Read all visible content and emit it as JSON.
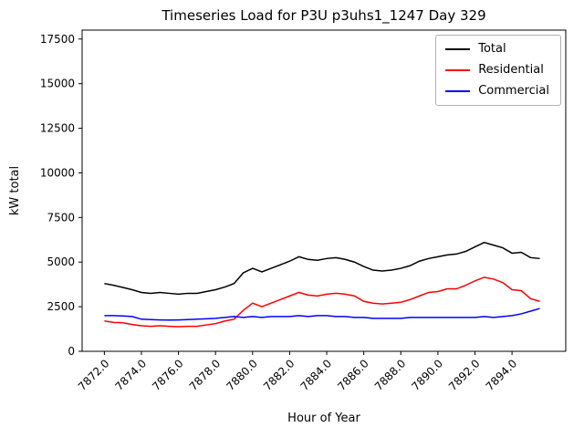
{
  "chart_data": {
    "type": "line",
    "title": "Timeseries Load for P3U p3uhs1_1247  Day 329",
    "xlabel": "Hour of Year",
    "ylabel": "kW total",
    "x": [
      7872.0,
      7872.5,
      7873.0,
      7873.5,
      7874.0,
      7874.5,
      7875.0,
      7875.5,
      7876.0,
      7876.5,
      7877.0,
      7877.5,
      7878.0,
      7878.5,
      7879.0,
      7879.5,
      7880.0,
      7880.5,
      7881.0,
      7881.5,
      7882.0,
      7882.5,
      7883.0,
      7883.5,
      7884.0,
      7884.5,
      7885.0,
      7885.5,
      7886.0,
      7886.5,
      7887.0,
      7887.5,
      7888.0,
      7888.5,
      7889.0,
      7889.5,
      7890.0,
      7890.5,
      7891.0,
      7891.5,
      7892.0,
      7892.5,
      7893.0,
      7893.5,
      7894.0,
      7894.5,
      7895.0,
      7895.5
    ],
    "series": [
      {
        "name": "Total",
        "color": "#000000",
        "values": [
          3800,
          3700,
          3580,
          3450,
          3300,
          3250,
          3300,
          3250,
          3200,
          3250,
          3250,
          3350,
          3450,
          3600,
          3800,
          4400,
          4650,
          4450,
          4650,
          4850,
          5050,
          5300,
          5150,
          5100,
          5200,
          5250,
          5150,
          5000,
          4750,
          4550,
          4500,
          4550,
          4650,
          4800,
          5050,
          5200,
          5300,
          5400,
          5450,
          5600,
          5850,
          6100,
          5950,
          5800,
          5500,
          5550,
          5250,
          5200
        ]
      },
      {
        "name": "Residential",
        "color": "#ff0000",
        "values": [
          1700,
          1620,
          1600,
          1500,
          1430,
          1400,
          1430,
          1400,
          1380,
          1400,
          1400,
          1480,
          1550,
          1700,
          1800,
          2300,
          2700,
          2500,
          2700,
          2900,
          3100,
          3300,
          3150,
          3100,
          3200,
          3250,
          3200,
          3100,
          2800,
          2700,
          2650,
          2700,
          2750,
          2900,
          3100,
          3300,
          3350,
          3500,
          3500,
          3700,
          3950,
          4150,
          4050,
          3850,
          3450,
          3400,
          2950,
          2800
        ]
      },
      {
        "name": "Commercial",
        "color": "#0000ff",
        "values": [
          2000,
          2000,
          1980,
          1950,
          1800,
          1780,
          1760,
          1750,
          1760,
          1780,
          1800,
          1820,
          1850,
          1900,
          1950,
          1900,
          1950,
          1900,
          1950,
          1950,
          1950,
          2000,
          1950,
          2000,
          2000,
          1950,
          1950,
          1900,
          1900,
          1850,
          1850,
          1850,
          1850,
          1900,
          1900,
          1900,
          1900,
          1900,
          1900,
          1900,
          1900,
          1950,
          1900,
          1950,
          2000,
          2100,
          2250,
          2400
        ]
      }
    ],
    "layout": {
      "xlim": [
        7870.8,
        7896.9
      ],
      "ylim": [
        0,
        18000
      ],
      "xticks": [
        7872,
        7874,
        7876,
        7878,
        7880,
        7882,
        7884,
        7886,
        7888,
        7890,
        7892,
        7894
      ],
      "xtick_labels": [
        "7872.0",
        "7874.0",
        "7876.0",
        "7878.0",
        "7880.0",
        "7882.0",
        "7884.0",
        "7886.0",
        "7888.0",
        "7890.0",
        "7892.0",
        "7894.0"
      ],
      "yticks": [
        0,
        2500,
        5000,
        7500,
        10000,
        12500,
        15000,
        17500
      ],
      "ytick_labels": [
        "0",
        "2500",
        "5000",
        "7500",
        "10000",
        "12500",
        "15000",
        "17500"
      ],
      "legend_position": "upper right",
      "grid": false,
      "line_width": 1.5
    }
  }
}
